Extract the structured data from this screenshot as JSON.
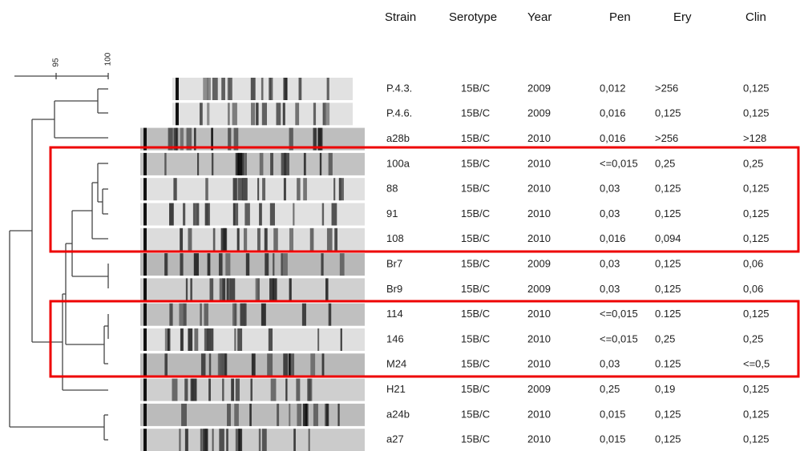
{
  "header": [
    "Strain",
    "Serotype",
    "Year",
    "Pen",
    "Ery",
    "Clin"
  ],
  "scale_labels": [
    "95",
    "100"
  ],
  "rows": [
    [
      "P.4.3.",
      "15B/C",
      "2009",
      "0,012",
      ">256",
      "0,125"
    ],
    [
      "P.4.6.",
      "15B/C",
      "2009",
      "0,016",
      "0,125",
      "0,125"
    ],
    [
      "a28b",
      "15B/C",
      "2010",
      "0,016",
      ">256",
      ">128"
    ],
    [
      "100a",
      "15B/C",
      "2010",
      "<=0,015",
      "0,25",
      "0,25"
    ],
    [
      "88",
      "15B/C",
      "2010",
      "0,03",
      "0,125",
      "0,125"
    ],
    [
      "91",
      "15B/C",
      "2010",
      "0,03",
      "0,125",
      "0,125"
    ],
    [
      "108",
      "15B/C",
      "2010",
      "0,016",
      "0,094",
      "0,125"
    ],
    [
      "Br7",
      "15B/C",
      "2009",
      "0,03",
      "0,125",
      "0,06"
    ],
    [
      "Br9",
      "15B/C",
      "2009",
      "0,03",
      "0,125",
      "0,06"
    ],
    [
      "114",
      "15B/C",
      "2010",
      "<=0,015",
      "0.125",
      "0,125"
    ],
    [
      "146",
      "15B/C",
      "2010",
      "<=0,015",
      "0,25",
      "0,25"
    ],
    [
      "M24",
      "15B/C",
      "2010",
      "0,03",
      "0.125",
      "<=0,5"
    ],
    [
      "H21",
      "15B/C",
      "2009",
      "0,25",
      "0,19",
      "0,125"
    ],
    [
      "a24b",
      "15B/C",
      "2010",
      "0,015",
      "0,125",
      "0,125"
    ],
    [
      "a27",
      "15B/C",
      "2010",
      "0,015",
      "0,125",
      "0,125"
    ]
  ]
}
